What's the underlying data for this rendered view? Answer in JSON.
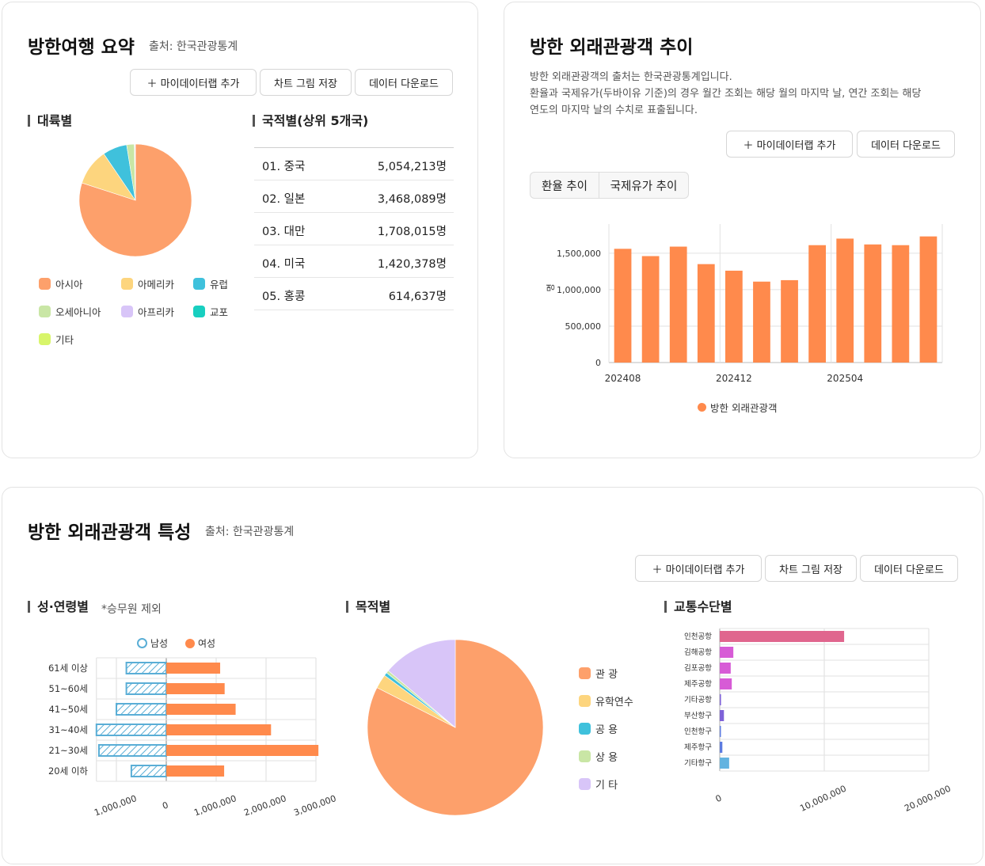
{
  "summary": {
    "title": "방한여행 요약",
    "source": "출처: 한국관광통계",
    "buttons": {
      "add": "＋ 마이데이터랩 추가",
      "save": "차트 그림 저장",
      "download": "데이터 다운로드"
    },
    "continent_title": "대륙별",
    "nation_title": "국적별(상위 5개국)",
    "continent_legend": [
      {
        "label": "아시아",
        "color": "#fda06b"
      },
      {
        "label": "아메리카",
        "color": "#fdd57e"
      },
      {
        "label": "유럽",
        "color": "#3fc1dc"
      },
      {
        "label": "오세아니아",
        "color": "#c9e6a5"
      },
      {
        "label": "아프리카",
        "color": "#d8c5f8"
      },
      {
        "label": "교포",
        "color": "#18cfc0"
      },
      {
        "label": "기타",
        "color": "#d8f56a"
      }
    ],
    "nations": [
      {
        "rank": "01. 중국",
        "value": "5,054,213명"
      },
      {
        "rank": "02. 일본",
        "value": "3,468,089명"
      },
      {
        "rank": "03. 대만",
        "value": "1,708,015명"
      },
      {
        "rank": "04. 미국",
        "value": "1,420,378명"
      },
      {
        "rank": "05. 홍콩",
        "value": "614,637명"
      }
    ]
  },
  "trend": {
    "title": "방한 외래관광객 추이",
    "desc_lines": [
      "방한 외래관광객의 출처는 한국관광통계입니다.",
      "환율과 국제유가(두바이유 기준)의 경우 월간 조회는 해당 월의 마지막 날, 연간 조회는 해당",
      "연도의 마지막 날의 수치로 표출됩니다."
    ],
    "buttons": {
      "add": "＋ 마이데이터랩 추가",
      "download": "데이터 다운로드"
    },
    "tabs": [
      "환율 추이",
      "국제유가 추이"
    ],
    "ylabel": "명",
    "legend": "방한 외래관광객",
    "color": "#ff8a4c"
  },
  "traits": {
    "title": "방한 외래관광객 특성",
    "source": "출처: 한국관광통계",
    "buttons": {
      "add": "＋ 마이데이터랩 추가",
      "save": "차트 그림 저장",
      "download": "데이터 다운로드"
    },
    "age_title": "성·연령별",
    "age_note": "*승무원 제외",
    "purpose_title": "목적별",
    "transport_title": "교통수단별",
    "gender_legend": [
      {
        "label": "남성",
        "color": "#5aaed6"
      },
      {
        "label": "여성",
        "color": "#ff8a4c"
      }
    ],
    "purpose_legend": [
      {
        "label": "관 광",
        "color": "#fda06b"
      },
      {
        "label": "유학연수",
        "color": "#fdd57e"
      },
      {
        "label": "공 용",
        "color": "#3fc1dc"
      },
      {
        "label": "상 용",
        "color": "#c9e6a5"
      },
      {
        "label": "기 타",
        "color": "#d8c5f8"
      }
    ]
  },
  "chart_data": [
    {
      "type": "pie",
      "title": "대륙별",
      "categories": [
        "아시아",
        "아메리카",
        "유럽",
        "오세아니아",
        "아프리카",
        "교포",
        "기타"
      ],
      "values": [
        80.0,
        10.5,
        7.0,
        2.2,
        0.2,
        0.05,
        0.05
      ],
      "colors": [
        "#fda06b",
        "#fdd57e",
        "#3fc1dc",
        "#c9e6a5",
        "#d8c5f8",
        "#18cfc0",
        "#d8f56a"
      ]
    },
    {
      "type": "bar",
      "x": [
        "202408",
        "202409",
        "202410",
        "202411",
        "202412",
        "202501",
        "202502",
        "202503",
        "202504",
        "202505",
        "202506",
        "202507"
      ],
      "values": [
        1560000,
        1460000,
        1590000,
        1350000,
        1260000,
        1110000,
        1130000,
        1610000,
        1700000,
        1620000,
        1610000,
        1730000
      ],
      "ylim": [
        0,
        1900000
      ],
      "yticks": [
        0,
        500000,
        1000000,
        1500000
      ],
      "ytick_labels": [
        "0",
        "500,000",
        "1,000,000",
        "1,500,000"
      ],
      "xtick_labels": [
        "202408",
        "202412",
        "202504"
      ],
      "ylabel": "명",
      "series_name": "방한 외래관광객"
    },
    {
      "type": "bar",
      "orientation": "horizontal",
      "title": "성·연령별",
      "categories": [
        "61세 이상",
        "51~60세",
        "41~50세",
        "31~40세",
        "21~30세",
        "20세 이하"
      ],
      "series": [
        {
          "name": "남성",
          "values": [
            800000,
            800000,
            1000000,
            1400000,
            1350000,
            700000
          ]
        },
        {
          "name": "여성",
          "values": [
            1080000,
            1170000,
            1390000,
            2100000,
            3050000,
            1160000
          ]
        }
      ],
      "xlim": [
        -1400000,
        3000000
      ],
      "tick_labels": [
        "1,000,000",
        "0",
        "1,000,000",
        "2,000,000",
        "3,000,000"
      ]
    },
    {
      "type": "pie",
      "title": "목적별",
      "categories": [
        "관 광",
        "유학연수",
        "공 용",
        "상 용",
        "기 타"
      ],
      "values": [
        82.5,
        2.6,
        0.6,
        0.5,
        13.8
      ],
      "colors": [
        "#fda06b",
        "#fdd57e",
        "#3fc1dc",
        "#c9e6a5",
        "#d8c5f8"
      ]
    },
    {
      "type": "bar",
      "orientation": "horizontal",
      "title": "교통수단별",
      "categories": [
        "인천공항",
        "김해공항",
        "김포공항",
        "제주공항",
        "기타공항",
        "부산항구",
        "인천항구",
        "제주항구",
        "기타항구"
      ],
      "values": [
        11900000,
        1300000,
        1050000,
        1150000,
        120000,
        400000,
        100000,
        250000,
        900000
      ],
      "colors": [
        "#e0668e",
        "#d75bd6",
        "#d75bd6",
        "#d75bd6",
        "#7e62d8",
        "#7e62d8",
        "#5c7be0",
        "#5c7be0",
        "#62b3e0"
      ],
      "xlim": [
        0,
        20000000
      ],
      "tick_labels": [
        "0",
        "10,000,000",
        "20,000,000"
      ]
    }
  ]
}
